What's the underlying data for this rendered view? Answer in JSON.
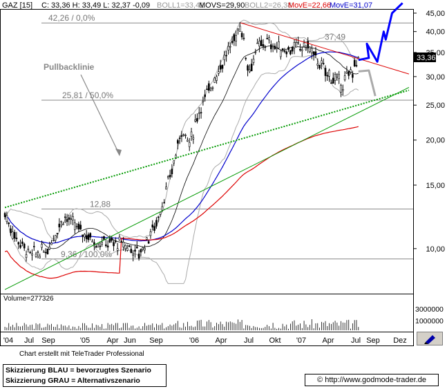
{
  "header": {
    "symbol": "GAZ [15]",
    "ohlc": "C: 33,36 H: 33,49 L: 32,37 -0,09",
    "boll1": "BOLL1=33,41",
    "movs": "MOVS=29,90",
    "boll2": "BOLL2=26,38",
    "move1": "MovE=22,66",
    "move2": "MovE=31,07"
  },
  "colors": {
    "candles": "#000000",
    "bollinger": "#aaaaaa",
    "movs": "#000000",
    "move_red": "#dd0000",
    "move_blue": "#0000cc",
    "trend_red": "#dd0000",
    "trend_green": "#009900",
    "trend_dotted": "#009900",
    "scenario_blue": "#0000ff",
    "scenario_gray": "#aaaaaa",
    "level_lines": "#888888"
  },
  "chart_data": {
    "type": "candlestick",
    "yscale": "log",
    "ylim": [
      7.5,
      46
    ],
    "yticks": [
      10,
      15,
      20,
      25,
      30,
      35,
      40,
      45
    ],
    "ytick_labels": [
      "10,00",
      "15,00",
      "20,00",
      "25,00",
      "30,00",
      "35,00",
      "40,00",
      "45,00"
    ],
    "last_price": "33,36",
    "x_labels": [
      "'04",
      "Jul",
      "Sep",
      "'05",
      "Apr",
      "Jun",
      "Sep",
      "'06",
      "Apr",
      "Jul",
      "Okt",
      "'07",
      "Apr",
      "Jul",
      "Sep",
      "Dez"
    ],
    "levels": [
      {
        "label": "42,26 / 0,0%",
        "value": 42.26
      },
      {
        "label": "37,49",
        "value": 37.49
      },
      {
        "label": "25,81 / 50,0%",
        "value": 25.81
      },
      {
        "label": "12,88",
        "value": 12.88
      },
      {
        "label": "9,36 / 100,0%",
        "value": 9.36
      }
    ],
    "annotation": "Pullbacklinie",
    "price_path": [
      [
        "2004-01",
        12.5
      ],
      [
        "2004-02",
        11.0
      ],
      [
        "2004-04",
        9.6
      ],
      [
        "2004-06",
        9.9
      ],
      [
        "2004-08",
        12.3
      ],
      [
        "2004-10",
        11.2
      ],
      [
        "2004-12",
        10.4
      ],
      [
        "2005-03",
        10.3
      ],
      [
        "2005-05",
        9.7
      ],
      [
        "2005-07",
        11.8
      ],
      [
        "2005-08",
        14.0
      ],
      [
        "2005-09",
        17.0
      ],
      [
        "2005-10",
        21.5
      ],
      [
        "2005-11",
        19.5
      ],
      [
        "2005-12",
        24.0
      ],
      [
        "2006-02",
        30.0
      ],
      [
        "2006-04",
        37.0
      ],
      [
        "2006-05",
        42.0
      ],
      [
        "2006-06",
        31.0
      ],
      [
        "2006-07",
        36.0
      ],
      [
        "2006-08",
        37.5
      ],
      [
        "2006-10",
        35.5
      ],
      [
        "2007-01",
        36.5
      ],
      [
        "2007-03",
        31.0
      ],
      [
        "2007-05",
        28.5
      ],
      [
        "2007-06",
        30.5
      ],
      [
        "2007-07",
        33.36
      ]
    ],
    "scenario_blue": [
      [
        "2007-07",
        33.36
      ],
      [
        "2007-08",
        33.8
      ],
      [
        "2007-08",
        37.0
      ],
      [
        "2007-09",
        33.0
      ],
      [
        "2007-10",
        40.0
      ],
      [
        "2007-10",
        38.0
      ],
      [
        "2007-11",
        45.0
      ],
      [
        "2007-12",
        48.0
      ]
    ],
    "scenario_gray": [
      [
        "2007-07",
        31.0
      ],
      [
        "2007-08",
        31.2
      ],
      [
        "2007-09",
        26.5
      ]
    ],
    "volume": {
      "label": "Volume=277326",
      "ytick_labels": [
        "3000000",
        "1000000"
      ]
    }
  },
  "footer": {
    "credit": "Chart erstellt mit TeleTrader Professional",
    "legend_blue": "Skizzierung BLAU = bevorzugtes Szenario",
    "legend_gray": "Skizzierung GRAU = Alternativszenario",
    "url_icon": "©",
    "url": "http://www.godmode-trader.de"
  }
}
